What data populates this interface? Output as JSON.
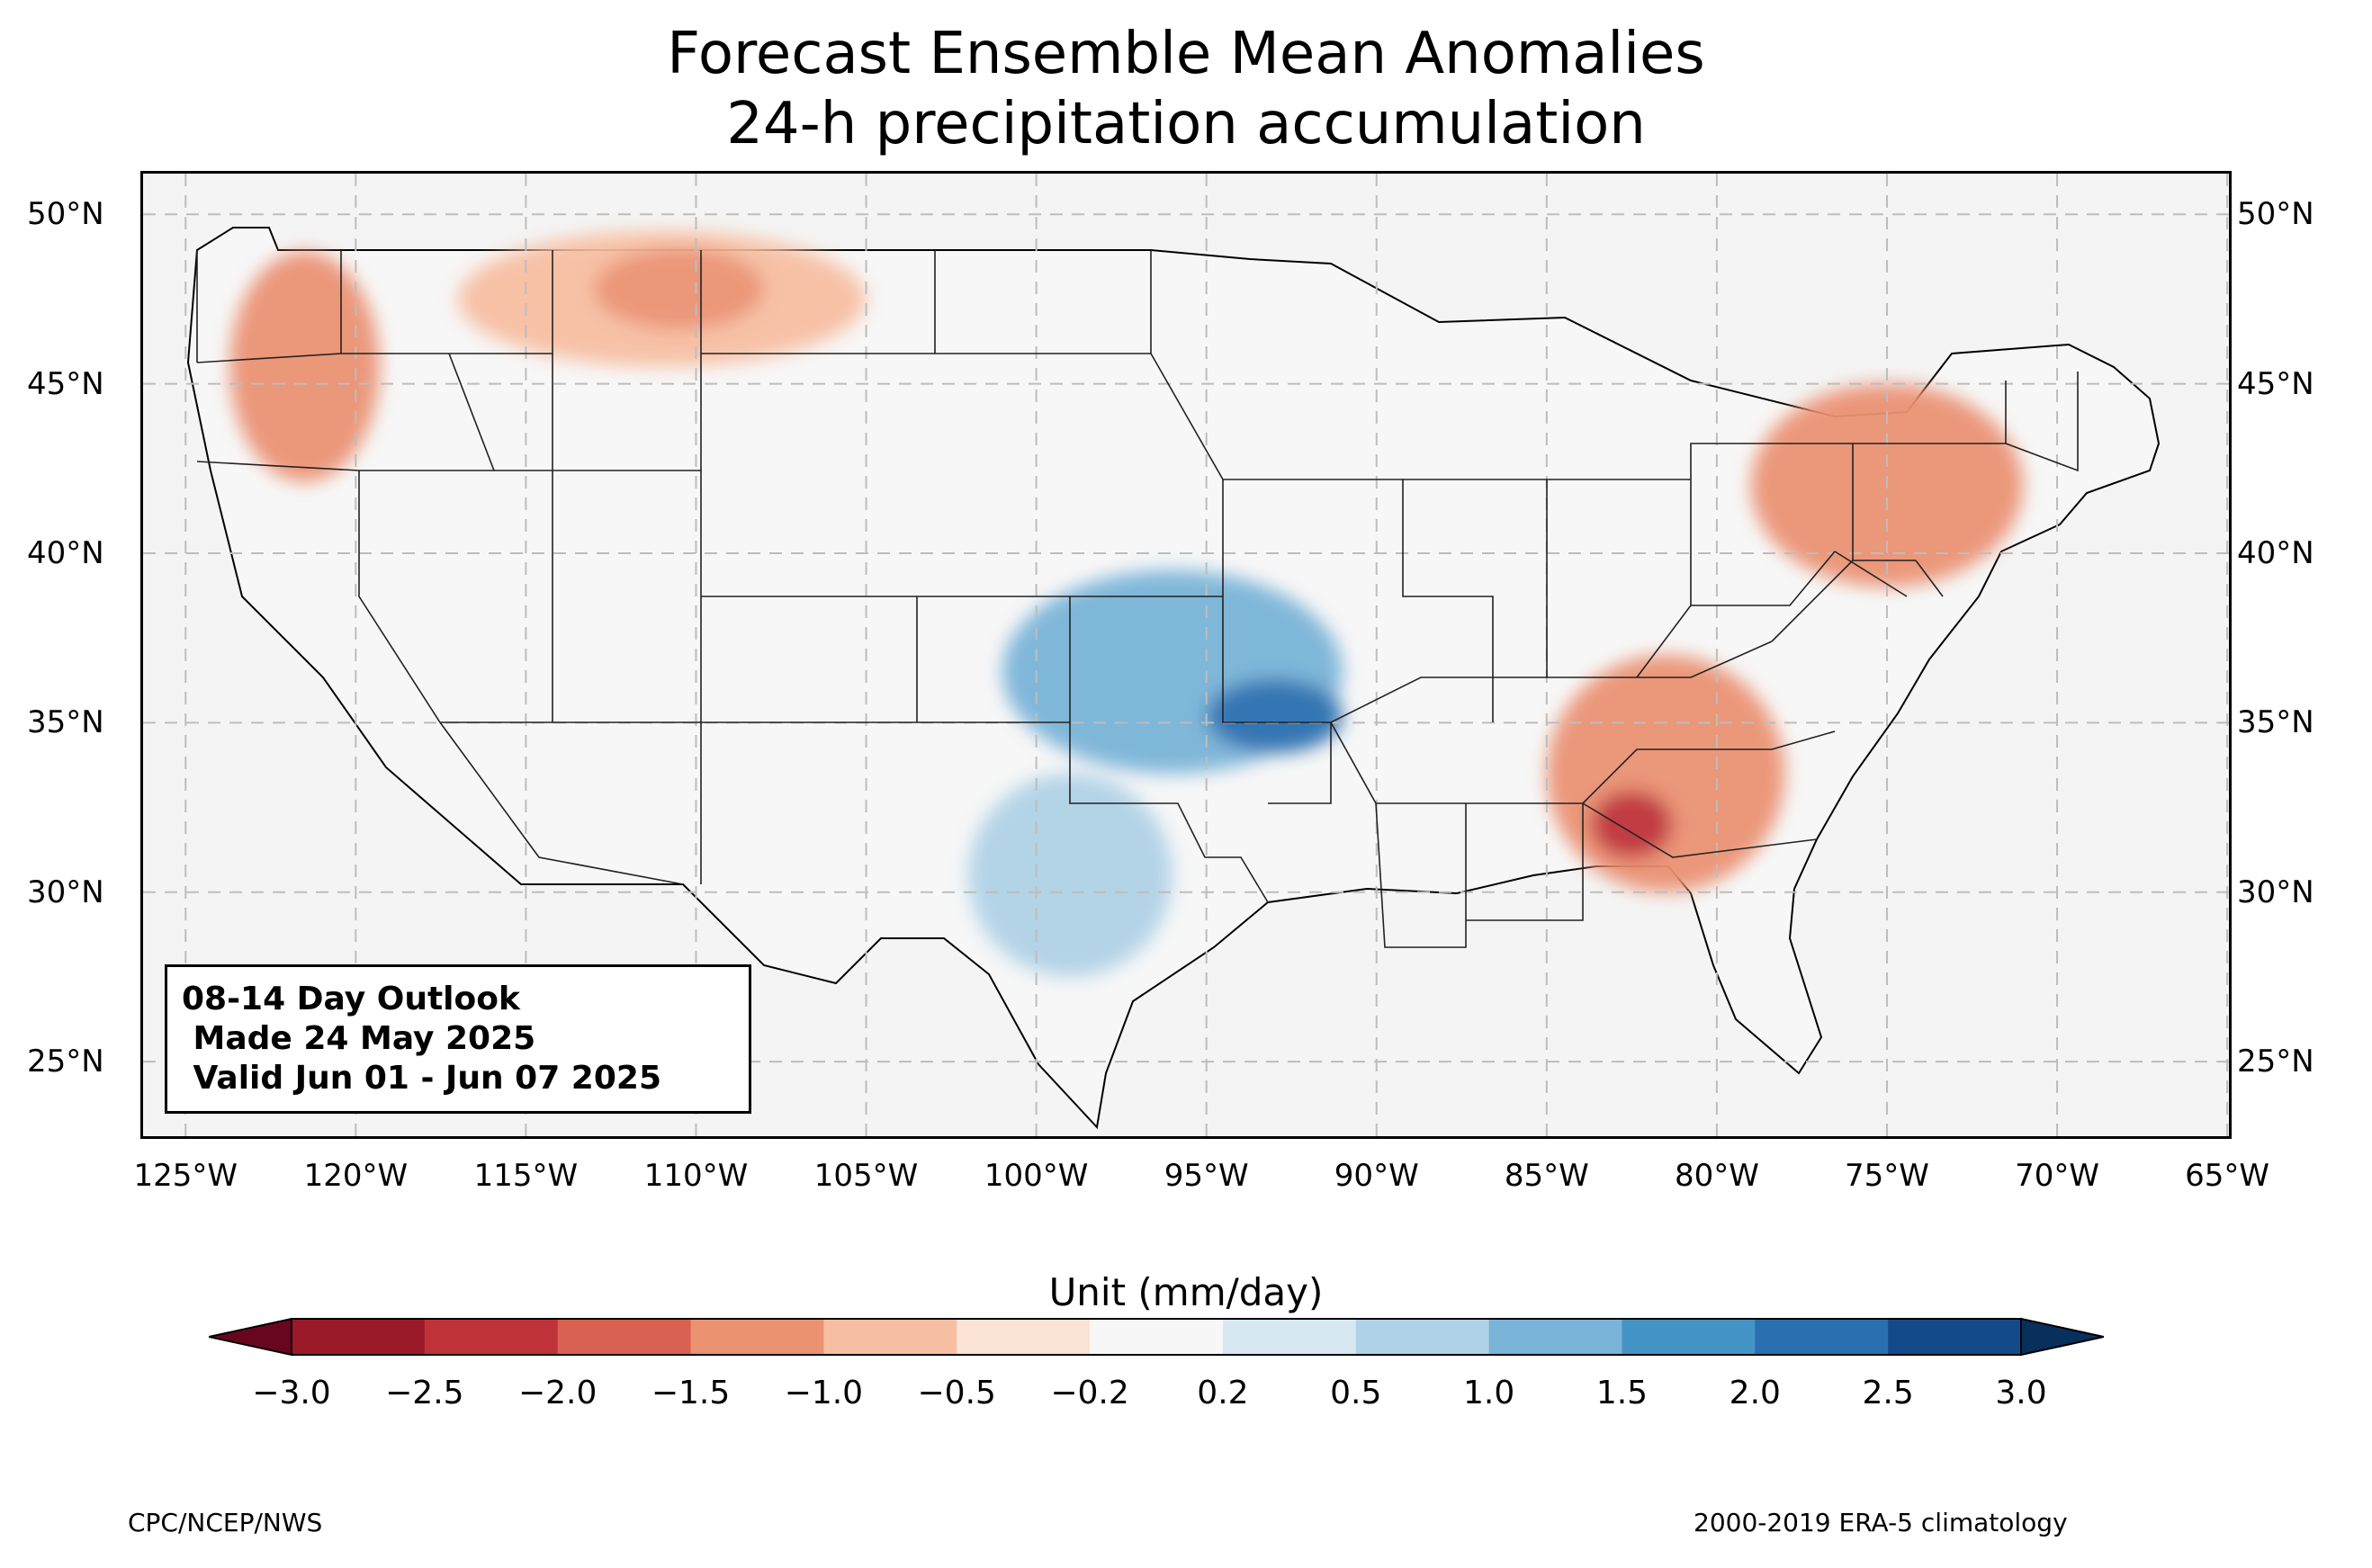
{
  "title": {
    "line1": "Forecast Ensemble Mean Anomalies",
    "line2": "24-h precipitation accumulation"
  },
  "map": {
    "lon_ticks": [
      "125°W",
      "120°W",
      "115°W",
      "110°W",
      "105°W",
      "100°W",
      "95°W",
      "90°W",
      "85°W",
      "80°W",
      "75°W",
      "70°W",
      "65°W"
    ],
    "lat_ticks": [
      "50°N",
      "45°N",
      "40°N",
      "35°N",
      "30°N",
      "25°N"
    ],
    "extent": {
      "lon_min": -126.25,
      "lon_max": -64.95,
      "lat_min": 22.8,
      "lat_max": 51.2
    },
    "background_color": "#f4f4f4",
    "gridlines": true,
    "anomaly_regions": [
      {
        "name": "Pacific Northwest dry",
        "level": -1.5,
        "lon": -121.5,
        "lat": 45.5,
        "rlon": 2.2,
        "rlat": 3.4
      },
      {
        "name": "Northern Rockies dry",
        "level": -1.0,
        "lon": -111.0,
        "lat": 47.5,
        "rlon": 6.0,
        "rlat": 2.0
      },
      {
        "name": "Montana dry core",
        "level": -1.5,
        "lon": -110.5,
        "lat": 47.8,
        "rlon": 2.5,
        "rlat": 1.2
      },
      {
        "name": "Southern Plains wet",
        "level": 1.0,
        "lon": -96.0,
        "lat": 36.5,
        "rlon": 5.0,
        "rlat": 3.0
      },
      {
        "name": "Arkansas wet core",
        "level": 2.0,
        "lon": -93.0,
        "lat": 35.2,
        "rlon": 2.0,
        "rlat": 1.1
      },
      {
        "name": "Texas wet",
        "level": 0.5,
        "lon": -99.0,
        "lat": 30.5,
        "rlon": 3.0,
        "rlat": 3.0
      },
      {
        "name": "Southeast dry",
        "level": -1.5,
        "lon": -81.5,
        "lat": 33.5,
        "rlon": 3.5,
        "rlat": 3.5
      },
      {
        "name": "Georgia dry core",
        "level": -2.5,
        "lon": -82.5,
        "lat": 32.0,
        "rlon": 1.2,
        "rlat": 1.0
      },
      {
        "name": "Northeast dry",
        "level": -1.5,
        "lon": -75.0,
        "lat": 42.0,
        "rlon": 4.0,
        "rlat": 3.0
      }
    ]
  },
  "info_box": {
    "line1": "08-14 Day Outlook",
    "line2": " Made 24 May 2025",
    "line3": " Valid Jun 01 - Jun 07 2025"
  },
  "colorbar": {
    "label": "Unit (mm/day)",
    "ticks": [
      "−3.0",
      "−2.5",
      "−2.0",
      "−1.5",
      "−1.0",
      "−0.5",
      "−0.2",
      "0.2",
      "0.5",
      "1.0",
      "1.5",
      "2.0",
      "2.5",
      "3.0"
    ],
    "colors": [
      "#9a1a2a",
      "#c0323a",
      "#d96152",
      "#eb9273",
      "#f7bfa2",
      "#fbe3d5",
      "#f7f7f7",
      "#d8e8f2",
      "#b0d2e7",
      "#79b4d8",
      "#4494c6",
      "#2a6fb0",
      "#134b8a"
    ],
    "extend_low_color": "#680620",
    "extend_high_color": "#08305c"
  },
  "credits": {
    "left": "CPC/NCEP/NWS",
    "right": "2000-2019 ERA-5 climatology"
  }
}
